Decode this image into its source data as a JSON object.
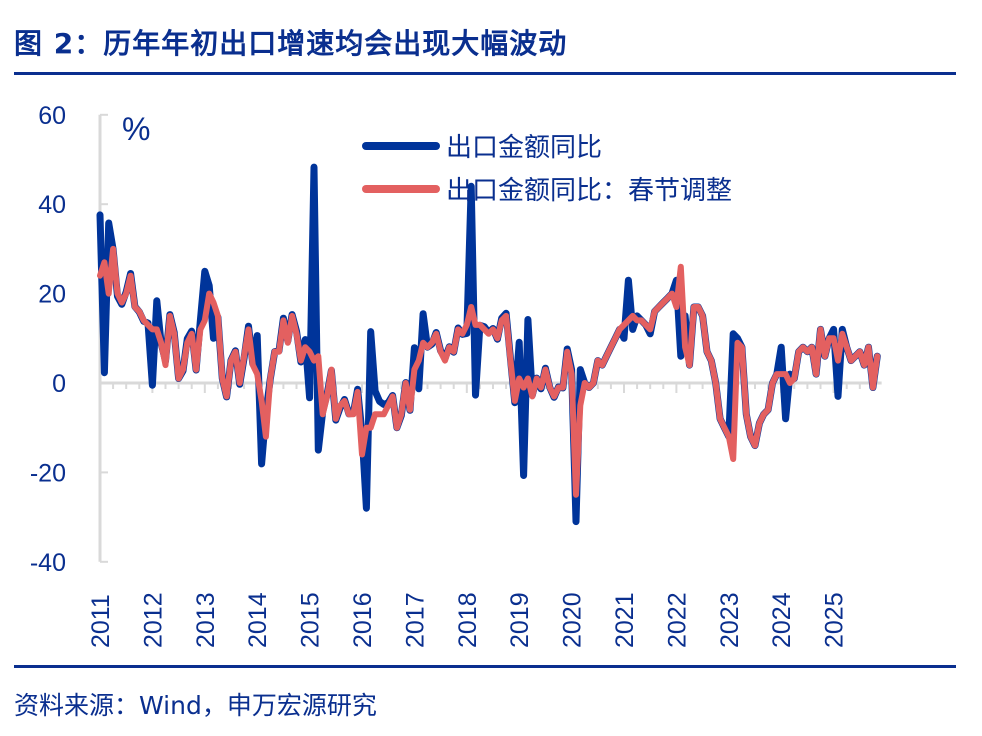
{
  "title": "图 2：历年年初出口增速均会出现大幅波动",
  "source": "资料来源：Wind，申万宏源研究",
  "chart_data": {
    "type": "line",
    "unit_label": "%",
    "ylim": [
      -40,
      60
    ],
    "yticks": [
      -40,
      -20,
      0,
      20,
      40,
      60
    ],
    "xticks": [
      "2011",
      "2012",
      "2013",
      "2014",
      "2015",
      "2016",
      "2017",
      "2018",
      "2019",
      "2020",
      "2021",
      "2022",
      "2023",
      "2024",
      "2025"
    ],
    "x_start": "2011-01",
    "x_frequency": "monthly",
    "grid": false,
    "legend_position": "top-center",
    "series": [
      {
        "name": "出口金额同比",
        "color": "#00349a",
        "values": [
          37.6,
          2.3,
          35.8,
          29.9,
          19.4,
          17.6,
          20.4,
          24.5,
          17.1,
          15.9,
          13.8,
          13.4,
          -0.5,
          18.4,
          8.9,
          4.9,
          15.3,
          11.3,
          1.0,
          2.7,
          9.9,
          11.6,
          2.9,
          14.1,
          25.0,
          21.8,
          10.0,
          14.7,
          1.0,
          -3.1,
          5.1,
          7.2,
          -0.3,
          5.6,
          12.7,
          4.3,
          10.6,
          -18.1,
          -6.6,
          0.9,
          7.0,
          7.2,
          14.5,
          9.4,
          15.3,
          11.6,
          4.7,
          9.7,
          -3.3,
          48.3,
          -15.0,
          -6.4,
          -2.5,
          2.8,
          -8.3,
          -5.5,
          -3.7,
          -6.9,
          -6.8,
          -1.4,
          -11.2,
          -28.0,
          11.5,
          -1.8,
          -4.1,
          -4.8,
          -4.4,
          -2.8,
          -10.0,
          -7.3,
          0.1,
          -6.1,
          7.9,
          -1.3,
          15.5,
          8.0,
          8.7,
          11.3,
          7.2,
          5.5,
          8.1,
          6.9,
          12.3,
          10.9,
          11.1,
          44.0,
          -2.7,
          12.9,
          12.6,
          11.3,
          12.2,
          9.8,
          14.5,
          15.6,
          5.4,
          -4.4,
          9.1,
          -20.7,
          14.2,
          -2.7,
          1.1,
          -1.3,
          3.3,
          -1.0,
          -3.2,
          -0.9,
          -1.1,
          7.6,
          3,
          -31,
          3,
          0,
          -1,
          0,
          5,
          4,
          6,
          8,
          10,
          12,
          10,
          23,
          12,
          15,
          14,
          13,
          11,
          16,
          17,
          18,
          19,
          20,
          23,
          6,
          15,
          4,
          17,
          17,
          15,
          7,
          5,
          0,
          -8,
          -10,
          -12,
          11,
          10,
          8,
          -7,
          -12,
          -14,
          -9,
          -7,
          -6,
          0,
          2,
          8,
          -8,
          2,
          1,
          7,
          8,
          7,
          8,
          2,
          12,
          6,
          10,
          12,
          -3,
          12,
          8,
          5,
          6,
          7,
          4,
          8,
          -1,
          6
        ]
      },
      {
        "name": "出口金额同比：春节调整",
        "color": "#e36060",
        "values": [
          24,
          27,
          20,
          30,
          20,
          18,
          20,
          24,
          17,
          16,
          14,
          13,
          12,
          12,
          9,
          4,
          15,
          11,
          1,
          3,
          9,
          11,
          3,
          12,
          14,
          20,
          18,
          15,
          1,
          -3,
          5,
          7,
          0,
          6,
          12,
          4,
          2,
          -4,
          -12,
          1,
          7,
          7,
          14,
          9,
          15,
          11,
          5,
          8,
          7,
          5,
          6,
          -7,
          -3,
          3,
          -8,
          -5,
          -4,
          -7,
          -7,
          -2,
          -16,
          -10,
          -10,
          -7,
          -7,
          -7,
          -5,
          -3,
          -10,
          -7,
          0,
          -6,
          3,
          5,
          9,
          8,
          9,
          11,
          7,
          5,
          8,
          7,
          12,
          11,
          13,
          17,
          13,
          13,
          12,
          11,
          12,
          10,
          14,
          15,
          5,
          -4,
          1,
          -1,
          1,
          -3,
          1,
          -1,
          3,
          -1,
          -3,
          -1,
          -1,
          7,
          2,
          -25,
          -5,
          0,
          -1,
          0,
          5,
          4,
          6,
          8,
          10,
          12,
          13,
          14,
          15,
          14,
          14,
          13,
          12,
          16,
          17,
          18,
          19,
          20,
          17,
          26,
          8,
          4,
          17,
          17,
          15,
          7,
          5,
          0,
          -8,
          -10,
          -12,
          -17,
          9,
          8,
          -7,
          -12,
          -14,
          -9,
          -7,
          -6,
          0,
          2,
          2,
          2,
          0,
          1,
          7,
          8,
          7,
          8,
          2,
          12,
          6,
          10,
          10,
          5,
          11,
          8,
          5,
          6,
          7,
          4,
          8,
          -1,
          6
        ]
      }
    ]
  }
}
